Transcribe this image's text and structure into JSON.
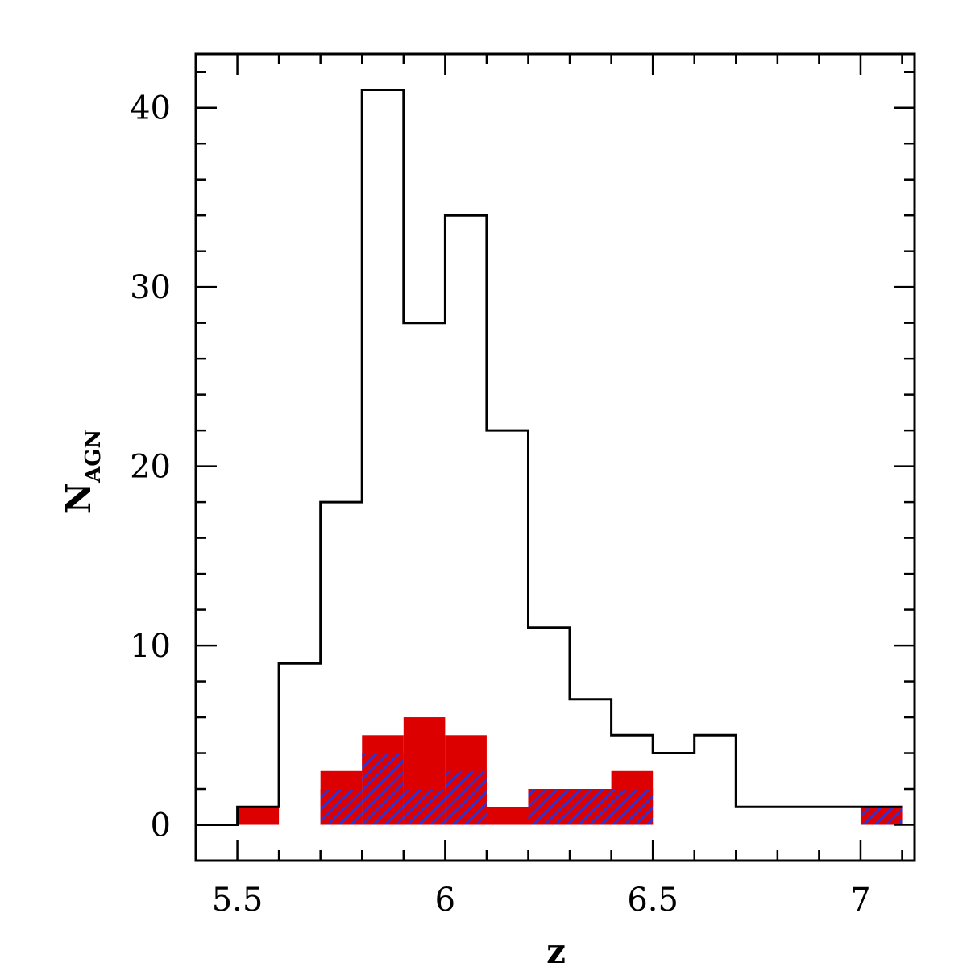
{
  "chart_data": {
    "type": "histogram",
    "xlabel": "z",
    "ylabel": "N",
    "ylabel_sub": "AGN",
    "xlim": [
      5.4,
      7.13
    ],
    "ylim": [
      -2.0,
      43.0
    ],
    "xticks": [
      {
        "value": 5.5,
        "label": "5.5"
      },
      {
        "value": 6.0,
        "label": "6"
      },
      {
        "value": 6.5,
        "label": "6.5"
      },
      {
        "value": 7.0,
        "label": "7"
      }
    ],
    "yticks": [
      {
        "value": 0,
        "label": "0"
      },
      {
        "value": 10,
        "label": "10"
      },
      {
        "value": 20,
        "label": "20"
      },
      {
        "value": 30,
        "label": "30"
      },
      {
        "value": 40,
        "label": "40"
      }
    ],
    "x_minor_step": 0.1,
    "y_minor_step": 2,
    "bin_edges": [
      5.4,
      5.5,
      5.6,
      5.7,
      5.8,
      5.9,
      6.0,
      6.1,
      6.2,
      6.3,
      6.4,
      6.5,
      6.6,
      6.7,
      6.8,
      6.9,
      7.0,
      7.1
    ],
    "series": [
      {
        "style": "step-outline",
        "color": "#000000",
        "values": [
          0,
          1,
          9,
          18,
          41,
          28,
          34,
          22,
          11,
          7,
          5,
          4,
          5,
          1,
          1,
          1,
          1
        ]
      },
      {
        "style": "filled",
        "color": "#dd0000",
        "values": [
          0,
          1,
          0,
          3,
          5,
          6,
          5,
          1,
          2,
          2,
          3,
          0,
          0,
          0,
          0,
          0,
          1
        ]
      },
      {
        "style": "hatched",
        "color": "#3333cc",
        "values": [
          0,
          0,
          0,
          2,
          4,
          2,
          3,
          0,
          2,
          2,
          2,
          0,
          0,
          0,
          0,
          0,
          1
        ]
      }
    ]
  }
}
